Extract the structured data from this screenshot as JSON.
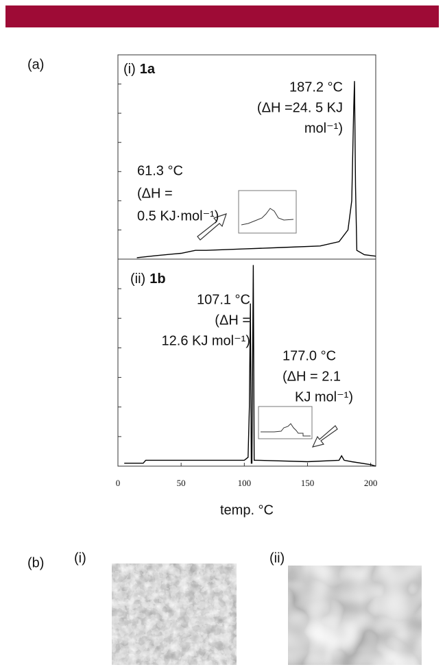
{
  "panel_a_label": "(a)",
  "chart_data": [
    {
      "type": "line",
      "panel_label": "(i)",
      "compound": "1a",
      "color": "#000000",
      "x": [
        15,
        30,
        50,
        61.3,
        70,
        100,
        130,
        160,
        175,
        182,
        185,
        186.5,
        187.2,
        188,
        189,
        195,
        204
      ],
      "values": [
        0.05,
        0.12,
        0.2,
        0.3,
        0.3,
        0.35,
        0.4,
        0.45,
        0.6,
        1.0,
        2.0,
        5.0,
        6.1,
        2.5,
        0.3,
        0.15,
        0.1
      ],
      "xlim": [
        0,
        204
      ],
      "ylim": [
        0,
        7
      ],
      "yticks": [
        1,
        2,
        3,
        4,
        5,
        6
      ],
      "annotations": [
        {
          "lines": [
            "61.3 °C",
            "(ΔH =",
            "0.5 KJ·mol⁻¹)"
          ]
        },
        {
          "lines": [
            "187.2 °C",
            "(ΔH =24. 5 KJ",
            "mol⁻¹)"
          ]
        }
      ]
    },
    {
      "type": "line",
      "panel_label": "(ii)",
      "compound": "1b",
      "color": "#000000",
      "x": [
        5,
        20,
        22,
        60,
        100,
        103,
        104,
        104.8,
        105.5,
        106,
        107.1,
        107.8,
        110,
        150,
        175,
        177,
        179,
        185,
        200,
        204
      ],
      "values": [
        0.1,
        0.1,
        0.2,
        0.2,
        0.2,
        0.3,
        2.0,
        5.5,
        0.1,
        0.1,
        6.8,
        0.2,
        0.2,
        0.15,
        0.2,
        0.35,
        0.2,
        0.15,
        0.05,
        0.0
      ],
      "xlim": [
        0,
        204
      ],
      "ylim": [
        0,
        7
      ],
      "yticks": [
        1,
        2,
        3,
        4,
        5,
        6
      ],
      "xticks": [
        0,
        50,
        100,
        150,
        200
      ],
      "xlabel": "temp. °C",
      "annotations": [
        {
          "lines": [
            "107.1 °C",
            "(ΔH =",
            "12.6 KJ mol⁻¹)"
          ]
        },
        {
          "lines": [
            "177.0 °C",
            "(ΔH = 2.1",
            "KJ mol⁻¹)"
          ]
        }
      ]
    }
  ],
  "panel_b": {
    "label": "(b)",
    "images": [
      {
        "label": "(i)"
      },
      {
        "label": "(ii)"
      }
    ]
  }
}
